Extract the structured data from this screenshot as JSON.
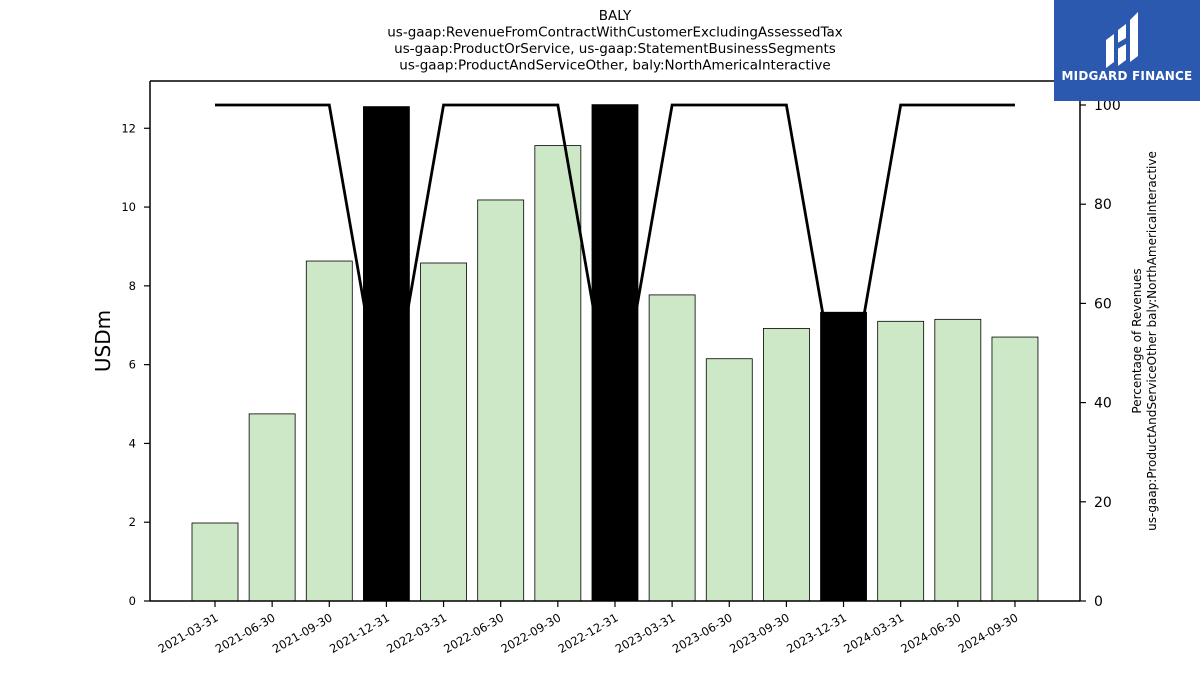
{
  "chart_data": {
    "type": "bar",
    "title": [
      "BALY",
      "us-gaap:RevenueFromContractWithCustomerExcludingAssessedTax",
      "us-gaap:ProductOrService, us-gaap:StatementBusinessSegments",
      "us-gaap:ProductAndServiceOther, baly:NorthAmericaInteractive"
    ],
    "categories": [
      "2021-03-31",
      "2021-06-30",
      "2021-09-30",
      "2021-12-31",
      "2022-03-31",
      "2022-06-30",
      "2022-09-30",
      "2022-12-31",
      "2023-03-31",
      "2023-06-30",
      "2023-09-30",
      "2023-12-31",
      "2024-03-31",
      "2024-06-30",
      "2024-09-30"
    ],
    "values": [
      1.98,
      4.75,
      8.63,
      12.55,
      8.58,
      10.18,
      11.56,
      12.6,
      7.77,
      6.15,
      6.92,
      7.33,
      7.1,
      7.15,
      6.7
    ],
    "highlighted": [
      false,
      false,
      false,
      true,
      false,
      false,
      false,
      true,
      false,
      false,
      false,
      true,
      false,
      false,
      false
    ],
    "percent_values": [
      100,
      100,
      100,
      34,
      100,
      100,
      100,
      34,
      100,
      100,
      100,
      34,
      100,
      100,
      100
    ],
    "ylabel": "USDm",
    "ylabel_right": [
      "Percentage of Revenues",
      "us-gaap:ProductAndServiceOther baly:NorthAmericaInteractive"
    ],
    "ylim": [
      0,
      13.2
    ],
    "ylim_right": [
      0,
      100
    ],
    "yticks": [
      0,
      2,
      4,
      6,
      8,
      10,
      12
    ],
    "yticks_right": [
      0,
      20,
      40,
      60,
      80,
      100
    ],
    "colors": {
      "bar": "#cce8c6",
      "highlight": "#000000",
      "line": "#000000",
      "logo_bg": "#2b59b0"
    },
    "grid": false
  },
  "logo": {
    "text": "MIDGARD FINANCE",
    "icon": "midgard-logo-icon"
  }
}
